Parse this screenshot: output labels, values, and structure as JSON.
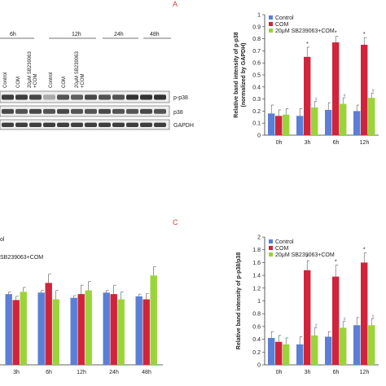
{
  "panel_letters": {
    "a": "A",
    "c": "C"
  },
  "colors": {
    "control": "#5b7fd6",
    "com": "#d0243c",
    "inhibitor": "#9ad43a"
  },
  "blot": {
    "times": [
      "6h",
      "12h",
      "24h",
      "48h"
    ],
    "lane_labels": [
      "Control",
      "COM",
      "20μM SB239063\n+COM",
      "Control",
      "COM",
      "20μM SB239063\n+COM"
    ],
    "bands": [
      "p-p38",
      "p38",
      "GAPDH"
    ],
    "partial_label": "ol"
  },
  "chart_data": [
    {
      "id": "A",
      "type": "bar",
      "categories": [
        "0h",
        "3h",
        "6h",
        "12h"
      ],
      "ylabel": "Relative band intensity of p-p38\n(normalized by GAPDH)",
      "xlabel": "",
      "ylim": [
        0,
        1.0
      ],
      "yticks": [
        "0",
        "0.1",
        "0.2",
        "0.3",
        "0.4",
        "0.5",
        "0.6",
        "0.7",
        "0.8",
        "0.9",
        "1"
      ],
      "legend": [
        "Control",
        "COM",
        "20μM SB239063+COM"
      ],
      "legend_position": "top-left",
      "series": [
        {
          "name": "Control",
          "values": [
            0.18,
            0.16,
            0.21,
            0.2
          ],
          "errors": [
            0.07,
            0.06,
            0.06,
            0.05
          ]
        },
        {
          "name": "COM",
          "values": [
            0.16,
            0.65,
            0.77,
            0.75
          ],
          "errors": [
            0.05,
            0.08,
            0.05,
            0.06
          ]
        },
        {
          "name": "20μM SB239063+COM",
          "values": [
            0.17,
            0.23,
            0.26,
            0.31
          ],
          "errors": [
            0.05,
            0.05,
            0.05,
            0.04
          ]
        }
      ],
      "annotations": {
        "com_star": [
          "",
          "*",
          "*",
          "*"
        ],
        "inh_hash": [
          "",
          "#",
          "#",
          "#"
        ]
      }
    },
    {
      "id": "C",
      "type": "bar",
      "categories": [
        "0h",
        "3h",
        "6h",
        "12h"
      ],
      "ylabel": "Relative band intensity of p-p38/p38",
      "xlabel": "",
      "ylim": [
        0,
        2.0
      ],
      "yticks": [
        "0",
        "0.2",
        "0.4",
        "0.6",
        "0.8",
        "1",
        "1.2",
        "1.4",
        "1.6",
        "1.8",
        "2"
      ],
      "legend": [
        "Control",
        "COM",
        "20μM SB239063+COM"
      ],
      "legend_position": "top-left",
      "series": [
        {
          "name": "Control",
          "values": [
            0.42,
            0.32,
            0.44,
            0.62
          ],
          "errors": [
            0.1,
            0.12,
            0.08,
            0.12
          ]
        },
        {
          "name": "COM",
          "values": [
            0.36,
            1.48,
            1.38,
            1.6
          ],
          "errors": [
            0.1,
            0.15,
            0.18,
            0.15
          ]
        },
        {
          "name": "20μM SB239063+COM",
          "values": [
            0.32,
            0.46,
            0.58,
            0.62
          ],
          "errors": [
            0.1,
            0.12,
            0.1,
            0.1
          ]
        }
      ],
      "annotations": {
        "com_star": [
          "",
          "*",
          "*",
          "*"
        ],
        "inh_hash": [
          "",
          "#",
          "#",
          "#"
        ]
      }
    },
    {
      "id": "B-partial",
      "type": "bar",
      "categories": [
        "3h",
        "6h",
        "12h",
        "24h",
        "48h"
      ],
      "ylabel": "",
      "legend": [
        "ol",
        "SB239063+COM"
      ],
      "legend_position": "top-left",
      "series": [
        {
          "name": "Control",
          "values": [
            0.95,
            0.97,
            0.9,
            0.97,
            0.92
          ],
          "errors": [
            0.03,
            0.03,
            0.03,
            0.03,
            0.03
          ]
        },
        {
          "name": "COM",
          "values": [
            0.87,
            1.1,
            0.95,
            0.95,
            0.88
          ],
          "errors": [
            0.05,
            0.12,
            0.12,
            0.12,
            0.08
          ]
        },
        {
          "name": "20μM SB239063+COM",
          "values": [
            0.98,
            0.88,
            1.0,
            0.88,
            1.2
          ],
          "errors": [
            0.06,
            0.12,
            0.12,
            0.1,
            0.12
          ]
        }
      ]
    }
  ]
}
